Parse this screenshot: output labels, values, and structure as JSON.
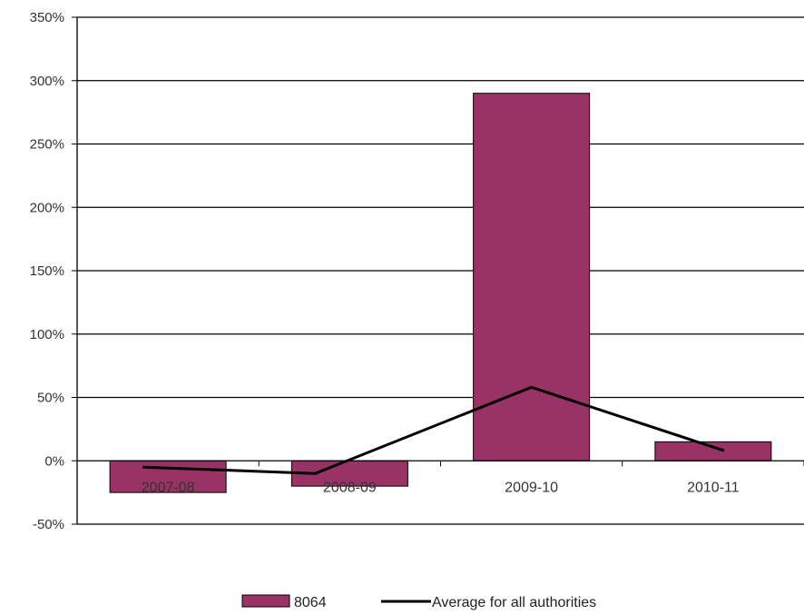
{
  "chart_data": {
    "type": "bar",
    "categories": [
      "2007-08",
      "2008-09",
      "2009-10",
      "2010-11"
    ],
    "y_ticks": [
      "-50%",
      "0%",
      "50%",
      "100%",
      "150%",
      "200%",
      "250%",
      "300%",
      "350%"
    ],
    "y_tick_values": [
      -50,
      0,
      50,
      100,
      150,
      200,
      250,
      300,
      350
    ],
    "ylim": [
      -50,
      350
    ],
    "grid": true,
    "legend_position": "bottom",
    "series": [
      {
        "name": "8064",
        "kind": "bar",
        "color": "#993366",
        "values": [
          -25,
          -20,
          290,
          15
        ]
      },
      {
        "name": "Average for all authorities",
        "kind": "line",
        "color": "#000000",
        "values": [
          -5,
          -10,
          58,
          8
        ]
      }
    ]
  }
}
